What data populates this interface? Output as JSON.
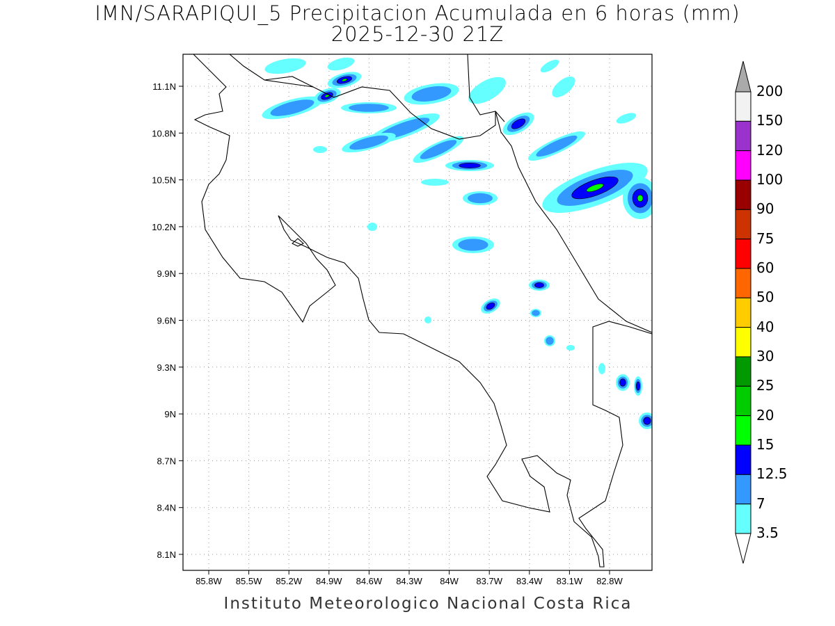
{
  "title": {
    "line1": "IMN/SARAPIQUI_5 Precipitacion Acumulada en 6 horas (mm)",
    "line2": "2025-12-30 21Z"
  },
  "footer": "Instituto Meteorologico Nacional Costa Rica",
  "lat_ticks": [
    "11.1N",
    "10.8N",
    "10.5N",
    "10.2N",
    "9.9N",
    "9.6N",
    "9.3N",
    "9N",
    "8.7N",
    "8.4N",
    "8.1N"
  ],
  "lon_ticks": [
    "85.8W",
    "85.5W",
    "85.2W",
    "84.9W",
    "84.6W",
    "84.3W",
    "84W",
    "83.7W",
    "83.4W",
    "83.1W",
    "82.8W"
  ],
  "legend": {
    "labels": [
      "200",
      "150",
      "120",
      "100",
      "90",
      "75",
      "60",
      "50",
      "40",
      "30",
      "25",
      "20",
      "15",
      "12.5",
      "7",
      "3.5"
    ],
    "colors": [
      "#f2f2f2",
      "#9933cc",
      "#ff00ff",
      "#990000",
      "#cc3300",
      "#ff0000",
      "#ff6600",
      "#ffcc00",
      "#ffff00",
      "#009900",
      "#00cc00",
      "#00ff00",
      "#0000ff",
      "#3399ff",
      "#66ffff"
    ],
    "over_color": "#aaaaaa",
    "under_color": "#ffffff"
  }
}
